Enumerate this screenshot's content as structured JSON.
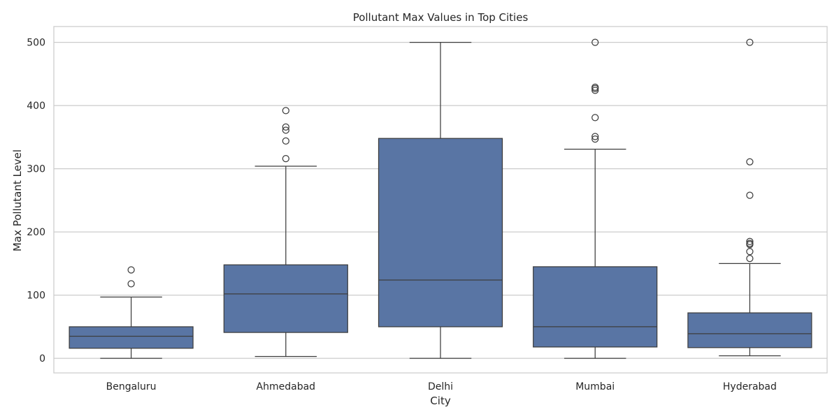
{
  "chart_data": {
    "type": "boxplot",
    "title": "Pollutant Max Values in Top Cities",
    "xlabel": "City",
    "ylabel": "Max Pollutant Level",
    "ylim": [
      -23,
      525
    ],
    "yticks": [
      0,
      100,
      200,
      300,
      400,
      500
    ],
    "grid": true,
    "colors": {
      "box": "#5975a4",
      "line": "#3d3d3d",
      "grid": "#cccccc",
      "frame": "#cccccc"
    },
    "categories": [
      "Bengaluru",
      "Ahmedabad",
      "Delhi",
      "Mumbai",
      "Hyderabad"
    ],
    "boxes": [
      {
        "category": "Bengaluru",
        "whislo": 0,
        "q1": 16,
        "med": 35,
        "q3": 50,
        "whishi": 97,
        "fliers": [
          118,
          140
        ]
      },
      {
        "category": "Ahmedabad",
        "whislo": 3,
        "q1": 41,
        "med": 102,
        "q3": 148,
        "whishi": 304,
        "fliers": [
          316,
          344,
          361,
          366,
          392
        ]
      },
      {
        "category": "Delhi",
        "whislo": 0,
        "q1": 50,
        "med": 124,
        "q3": 348,
        "whishi": 500,
        "fliers": []
      },
      {
        "category": "Mumbai",
        "whislo": 0,
        "q1": 18,
        "med": 50,
        "q3": 145,
        "whishi": 331,
        "fliers": [
          347,
          351,
          381,
          424,
          427,
          429,
          500
        ]
      },
      {
        "category": "Hyderabad",
        "whislo": 4,
        "q1": 17,
        "med": 39,
        "q3": 72,
        "whishi": 150,
        "fliers": [
          158,
          169,
          180,
          182,
          185,
          258,
          311,
          500
        ]
      }
    ]
  }
}
